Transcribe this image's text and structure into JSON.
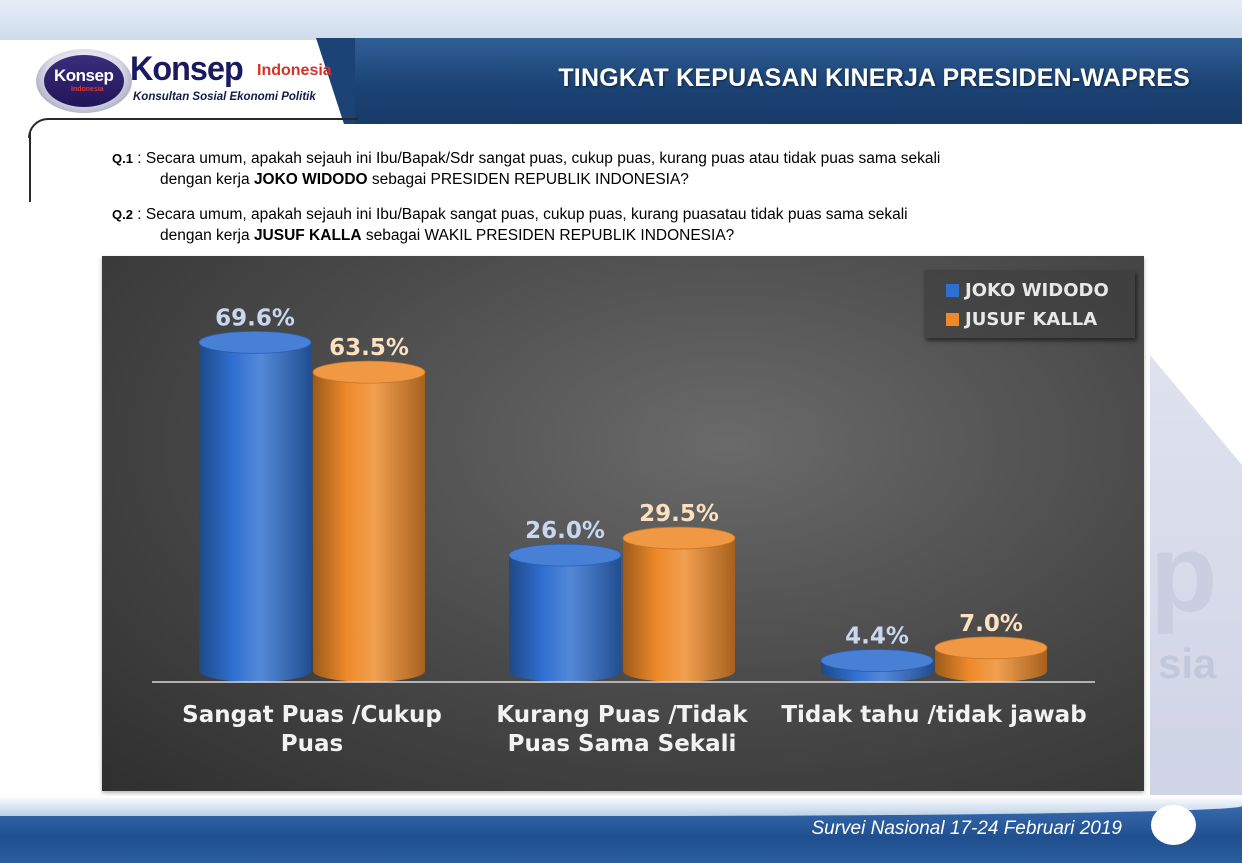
{
  "header": {
    "title": "TINGKAT KEPUASAN KINERJA PRESIDEN-WAPRES"
  },
  "logo": {
    "emblem_text": "Konsep",
    "emblem_sub": "Indonesia",
    "brand": "Konsep",
    "country": "Indonesia",
    "tagline": "Konsultan Sosial Ekonomi Politik"
  },
  "questions": {
    "q1": {
      "num": "Q.1",
      "sep": " : ",
      "line1": "Secara umum, apakah sejauh ini  Ibu/Bapak/Sdr sangat puas, cukup puas, kurang puas atau tidak puas sama sekali",
      "line2_pre": "dengan kerja ",
      "line2_bold": "JOKO WIDODO",
      "line2_post": " sebagai PRESIDEN REPUBLIK INDONESIA?"
    },
    "q2": {
      "num": "Q.2",
      "sep": " : ",
      "line1": "Secara umum, apakah sejauh ini  Ibu/Bapak sangat puas, cukup puas, kurang puasatau tidak puas sama sekali",
      "line2_pre": "dengan kerja ",
      "line2_bold": "JUSUF KALLA",
      "line2_post": " sebagai WAKIL PRESIDEN REPUBLIK INDONESIA?"
    }
  },
  "watermark": {
    "letter": "p",
    "text": "sia"
  },
  "chart_data": {
    "type": "bar",
    "categories": [
      [
        "Sangat Puas /Cukup",
        "Puas"
      ],
      [
        "Kurang Puas /Tidak",
        "Puas Sama Sekali"
      ],
      [
        "Tidak tahu /tidak jawab"
      ]
    ],
    "series": [
      {
        "name": "JOKO WIDODO",
        "values": [
          69.6,
          26.0,
          4.4
        ],
        "labels": [
          "69.6%",
          "26.0%",
          "4.4%"
        ],
        "color": "#2f6fd0",
        "label_color": "#c9d8f0"
      },
      {
        "name": "JUSUF KALLA",
        "values": [
          63.5,
          29.5,
          7.0
        ],
        "labels": [
          "63.5%",
          "29.5%",
          "7.0%"
        ],
        "color": "#ee8a2a",
        "label_color": "#fbe1c2"
      }
    ],
    "ylim": [
      0,
      75
    ],
    "legend_position": "top-right",
    "grid": false
  },
  "footer": {
    "text": "Survei Nasional 17-24 Februari 2019"
  }
}
